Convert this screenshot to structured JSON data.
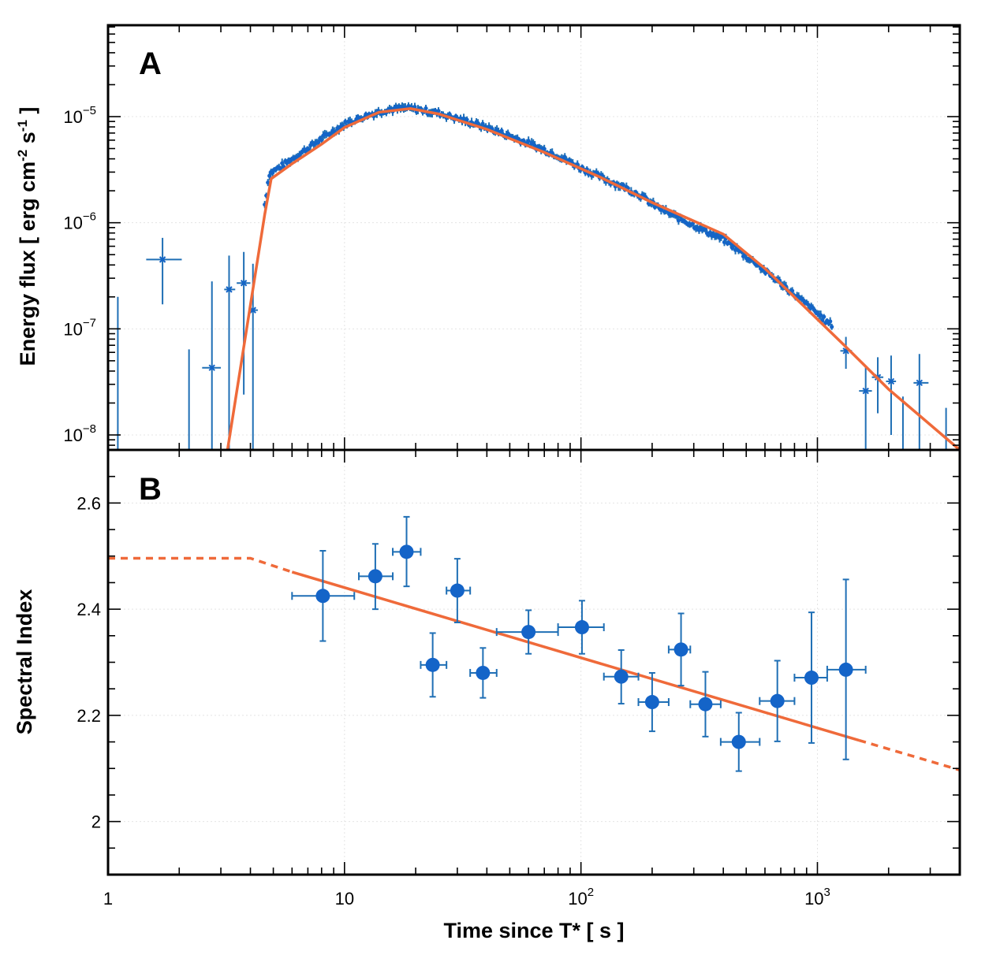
{
  "figure": {
    "x_axis_label": "Time since T* [ s ]",
    "x_ticks": [
      {
        "value": 1,
        "base": "1",
        "exp": ""
      },
      {
        "value": 10,
        "base": "10",
        "exp": ""
      },
      {
        "value": 100,
        "base": "10",
        "exp": "2"
      },
      {
        "value": 1000,
        "base": "10",
        "exp": "3"
      }
    ]
  },
  "colors": {
    "data": "#1464c8",
    "error_bar": "#1f6fb5",
    "fit": "#ef6a3a"
  },
  "chart_data": [
    {
      "panel": "A",
      "type": "scatter",
      "x_scale": "log",
      "y_scale": "log",
      "xlim": [
        1,
        4000
      ],
      "ylim": [
        7e-09,
        5e-05
      ],
      "xlabel": "Time since T* [ s ]",
      "ylabel": "Energy flux [ erg cm-2 s-1 ]",
      "ylabel_parts": {
        "pre": "Energy flux [ erg cm",
        "sup1": "-2",
        "mid": " s",
        "sup2": "-1",
        "post": " ]"
      },
      "y_ticks": [
        {
          "value": 1e-08,
          "base": "10",
          "exp": "−8"
        },
        {
          "value": 1e-07,
          "base": "10",
          "exp": "−7"
        },
        {
          "value": 1e-06,
          "base": "10",
          "exp": "−6"
        },
        {
          "value": 1e-05,
          "base": "10",
          "exp": "−5"
        }
      ],
      "grid": true,
      "sparse_points": [
        {
          "t": 1.7,
          "t_lo": 1.45,
          "t_hi": 2.05,
          "f": 4.5e-07,
          "f_lo": 1.7e-07,
          "f_hi": 7.2e-07
        },
        {
          "t": 2.75,
          "t_lo": 2.5,
          "t_hi": 3.0,
          "f": 4.3e-08,
          "f_lo": 7e-09,
          "f_hi": 2.8e-07
        },
        {
          "t": 3.25,
          "t_lo": 3.1,
          "t_hi": 3.45,
          "f": 2.35e-07,
          "f_lo": 7e-09,
          "f_hi": 4.9e-07
        },
        {
          "t": 3.75,
          "t_lo": 3.5,
          "t_hi": 4.0,
          "f": 2.7e-07,
          "f_lo": 2.4e-08,
          "f_hi": 5.3e-07
        },
        {
          "t": 4.1,
          "t_lo": 4.0,
          "t_hi": 4.3,
          "f": 1.5e-07,
          "f_lo": 7e-09,
          "f_hi": 4.1e-07
        },
        {
          "t": 1320,
          "t_lo": 1250,
          "t_hi": 1400,
          "f": 6.2e-08,
          "f_lo": 4.2e-08,
          "f_hi": 8.4e-08
        },
        {
          "t": 1600,
          "t_lo": 1500,
          "t_hi": 1700,
          "f": 2.6e-08,
          "f_lo": 7e-09,
          "f_hi": 4.4e-08
        },
        {
          "t": 1800,
          "t_lo": 1700,
          "t_hi": 1900,
          "f": 3.5e-08,
          "f_lo": 1.6e-08,
          "f_hi": 5.4e-08
        },
        {
          "t": 2050,
          "t_lo": 1950,
          "t_hi": 2150,
          "f": 3.2e-08,
          "f_lo": 1e-08,
          "f_hi": 5.6e-08
        },
        {
          "t": 2700,
          "t_lo": 2550,
          "t_hi": 2950,
          "f": 3.1e-08,
          "f_lo": 7e-09,
          "f_hi": 5.8e-08
        }
      ],
      "upper_limits": [
        {
          "t": 1.1,
          "f_hi": 2e-07
        },
        {
          "t": 2.2,
          "f_hi": 6.4e-08
        },
        {
          "t": 2.3,
          "f_hi": 7e-09
        },
        {
          "t": 2300,
          "f_hi": 2.3e-08
        },
        {
          "t": 3500,
          "f_hi": 1.8e-08
        }
      ],
      "dense_series": [
        [
          4.5,
          1.05e-06
        ],
        [
          4.8,
          2.9e-06
        ],
        [
          5.5,
          3.5e-06
        ],
        [
          6.5,
          4.5e-06
        ],
        [
          8,
          6.2e-06
        ],
        [
          10,
          8.5e-06
        ],
        [
          12,
          1e-05
        ],
        [
          15,
          1.16e-05
        ],
        [
          18,
          1.2e-05
        ],
        [
          20,
          1.18e-05
        ],
        [
          25,
          1.08e-05
        ],
        [
          30,
          9.6e-06
        ],
        [
          40,
          7.9e-06
        ],
        [
          50,
          6.6e-06
        ],
        [
          60,
          5.6e-06
        ],
        [
          80,
          4.3e-06
        ],
        [
          100,
          3.3e-06
        ],
        [
          130,
          2.5e-06
        ],
        [
          150,
          2.2e-06
        ],
        [
          180,
          1.8e-06
        ],
        [
          200,
          1.5e-06
        ],
        [
          250,
          1.15e-06
        ],
        [
          300,
          9.5e-07
        ],
        [
          350,
          8e-07
        ],
        [
          400,
          7e-07
        ],
        [
          450,
          5.8e-07
        ],
        [
          500,
          4.8e-07
        ],
        [
          550,
          4.2e-07
        ],
        [
          600,
          3.5e-07
        ],
        [
          700,
          2.7e-07
        ],
        [
          800,
          2.1e-07
        ],
        [
          900,
          1.7e-07
        ],
        [
          1000,
          1.4e-07
        ],
        [
          1100,
          1.15e-07
        ],
        [
          1200,
          1.05e-07
        ]
      ],
      "fit_curve": [
        [
          3.2,
          6e-09
        ],
        [
          4.6,
          1.2e-06
        ],
        [
          4.9,
          2.6e-06
        ],
        [
          6,
          3.6e-06
        ],
        [
          8,
          5.5e-06
        ],
        [
          10,
          7.9e-06
        ],
        [
          14,
          1.1e-05
        ],
        [
          19,
          1.19e-05
        ],
        [
          25,
          1.06e-05
        ],
        [
          40,
          7.6e-06
        ],
        [
          70,
          4.6e-06
        ],
        [
          120,
          2.7e-06
        ],
        [
          200,
          1.55e-06
        ],
        [
          400,
          7.8e-07
        ],
        [
          600,
          3.7e-07
        ],
        [
          1300,
          7e-08
        ],
        [
          2000,
          2.7e-08
        ],
        [
          4000,
          6e-09
        ]
      ]
    },
    {
      "panel": "B",
      "type": "scatter",
      "x_scale": "log",
      "y_scale": "linear",
      "xlim": [
        1,
        4000
      ],
      "ylim": [
        1.9,
        2.7
      ],
      "xlabel": "Time since T* [ s ]",
      "ylabel": "Spectral Index",
      "y_ticks": [
        {
          "value": 2.0,
          "label": "2"
        },
        {
          "value": 2.2,
          "label": "2.2"
        },
        {
          "value": 2.4,
          "label": "2.4"
        },
        {
          "value": 2.6,
          "label": "2.6"
        }
      ],
      "grid": true,
      "points": [
        {
          "t": 8.1,
          "t_lo": 6.0,
          "t_hi": 11.0,
          "y": 2.425,
          "y_lo": 2.34,
          "y_hi": 2.51
        },
        {
          "t": 13.5,
          "t_lo": 11.5,
          "t_hi": 16.0,
          "y": 2.462,
          "y_lo": 2.4,
          "y_hi": 2.523
        },
        {
          "t": 18.3,
          "t_lo": 16.0,
          "t_hi": 21.0,
          "y": 2.508,
          "y_lo": 2.443,
          "y_hi": 2.574
        },
        {
          "t": 23.6,
          "t_lo": 21.0,
          "t_hi": 27.0,
          "y": 2.295,
          "y_lo": 2.235,
          "y_hi": 2.355
        },
        {
          "t": 30.0,
          "t_lo": 27.0,
          "t_hi": 34.0,
          "y": 2.435,
          "y_lo": 2.375,
          "y_hi": 2.495
        },
        {
          "t": 38.5,
          "t_lo": 34.0,
          "t_hi": 44.0,
          "y": 2.28,
          "y_lo": 2.233,
          "y_hi": 2.327
        },
        {
          "t": 60,
          "t_lo": 44,
          "t_hi": 80,
          "y": 2.357,
          "y_lo": 2.316,
          "y_hi": 2.398
        },
        {
          "t": 101,
          "t_lo": 80,
          "t_hi": 125,
          "y": 2.366,
          "y_lo": 2.316,
          "y_hi": 2.416
        },
        {
          "t": 148,
          "t_lo": 125,
          "t_hi": 175,
          "y": 2.273,
          "y_lo": 2.222,
          "y_hi": 2.323
        },
        {
          "t": 200,
          "t_lo": 175,
          "t_hi": 235,
          "y": 2.225,
          "y_lo": 2.17,
          "y_hi": 2.28
        },
        {
          "t": 265,
          "t_lo": 235,
          "t_hi": 290,
          "y": 2.324,
          "y_lo": 2.256,
          "y_hi": 2.392
        },
        {
          "t": 336,
          "t_lo": 290,
          "t_hi": 390,
          "y": 2.221,
          "y_lo": 2.16,
          "y_hi": 2.282
        },
        {
          "t": 465,
          "t_lo": 390,
          "t_hi": 570,
          "y": 2.15,
          "y_lo": 2.095,
          "y_hi": 2.205
        },
        {
          "t": 677,
          "t_lo": 570,
          "t_hi": 800,
          "y": 2.227,
          "y_lo": 2.151,
          "y_hi": 2.303
        },
        {
          "t": 944,
          "t_lo": 800,
          "t_hi": 1100,
          "y": 2.271,
          "y_lo": 2.148,
          "y_hi": 2.394
        },
        {
          "t": 1320,
          "t_lo": 1100,
          "t_hi": 1600,
          "y": 2.286,
          "y_lo": 2.117,
          "y_hi": 2.456
        }
      ],
      "fit_solid": [
        [
          6,
          2.47
        ],
        [
          1500,
          2.153
        ]
      ],
      "fit_dashed": [
        [
          [
            1,
            2.496
          ],
          [
            4,
            2.496
          ],
          [
            6,
            2.47
          ]
        ],
        [
          [
            1500,
            2.153
          ],
          [
            4000,
            2.097
          ]
        ]
      ]
    }
  ]
}
